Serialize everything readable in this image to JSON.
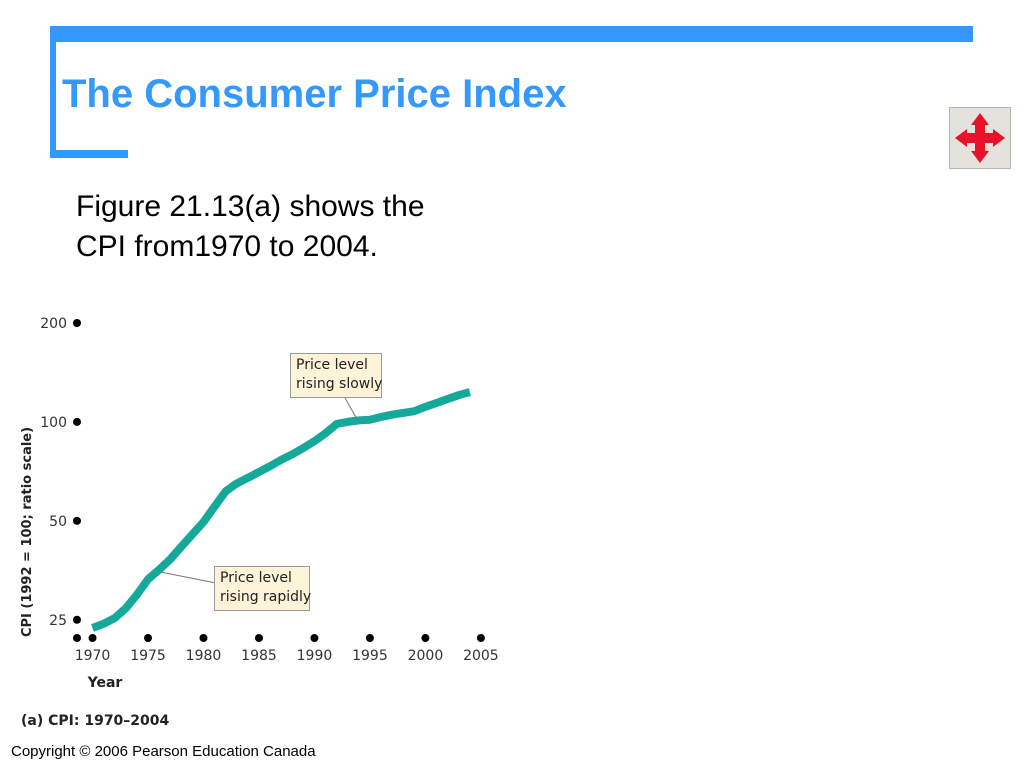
{
  "slide": {
    "title": "The Consumer Price Index",
    "body_lines": [
      "Figure 21.13(a) shows the",
      "CPI from1970 to 2004."
    ],
    "copyright": "Copyright © 2006 Pearson Education Canada"
  },
  "colors": {
    "accent": "#3399ff",
    "series": "#14a99a",
    "callout_bg": "#fdf3d8",
    "nav_arrows": "#e8132a"
  },
  "nav_icon": "four-way-arrow-icon",
  "chart_data": {
    "type": "line",
    "caption": "(a) CPI: 1970–2004",
    "xlabel": "Year",
    "ylabel": "CPI (1992 = 100; ratio scale)",
    "yscale": "log",
    "ylim": [
      22,
      200
    ],
    "xlim": [
      1968.6,
      2006
    ],
    "yticks": [
      {
        "value": 25,
        "label": "25"
      },
      {
        "value": 50,
        "label": "50"
      },
      {
        "value": 100,
        "label": "100"
      },
      {
        "value": 200,
        "label": "200"
      }
    ],
    "xticks": [
      {
        "value": 1970,
        "label": "1970"
      },
      {
        "value": 1975,
        "label": "1975"
      },
      {
        "value": 1980,
        "label": "1980"
      },
      {
        "value": 1985,
        "label": "1985"
      },
      {
        "value": 1990,
        "label": "1990"
      },
      {
        "value": 1995,
        "label": "1995"
      },
      {
        "value": 2000,
        "label": "2000"
      },
      {
        "value": 2005,
        "label": "2005"
      }
    ],
    "grid": false,
    "series": [
      {
        "x": [
          1970,
          1971,
          1972,
          1973,
          1974,
          1975,
          1976,
          1977,
          1978,
          1979,
          1980,
          1981,
          1982,
          1983,
          1984,
          1985,
          1986,
          1987,
          1988,
          1989,
          1990,
          1991,
          1992,
          1993,
          1994,
          1995,
          1996,
          1997,
          1998,
          1999,
          2000,
          2001,
          2002,
          2003,
          2004
        ],
        "values": [
          23.6,
          24.3,
          25.3,
          27.1,
          29.8,
          33.2,
          35.5,
          38.2,
          41.7,
          45.5,
          49.6,
          55.3,
          61.5,
          65.0,
          67.6,
          70.4,
          73.3,
          76.7,
          79.7,
          83.3,
          87.4,
          92.4,
          98.6,
          100.0,
          101.1,
          101.5,
          103.5,
          105.2,
          106.5,
          107.8,
          111.2,
          114.2,
          117.4,
          120.6,
          123.3
        ]
      }
    ],
    "annotations": [
      {
        "lines": [
          "Price level",
          "rising slowly"
        ],
        "points_to_year": 1994
      },
      {
        "lines": [
          "Price level",
          "rising rapidly"
        ],
        "points_to_year": 1976
      }
    ]
  }
}
